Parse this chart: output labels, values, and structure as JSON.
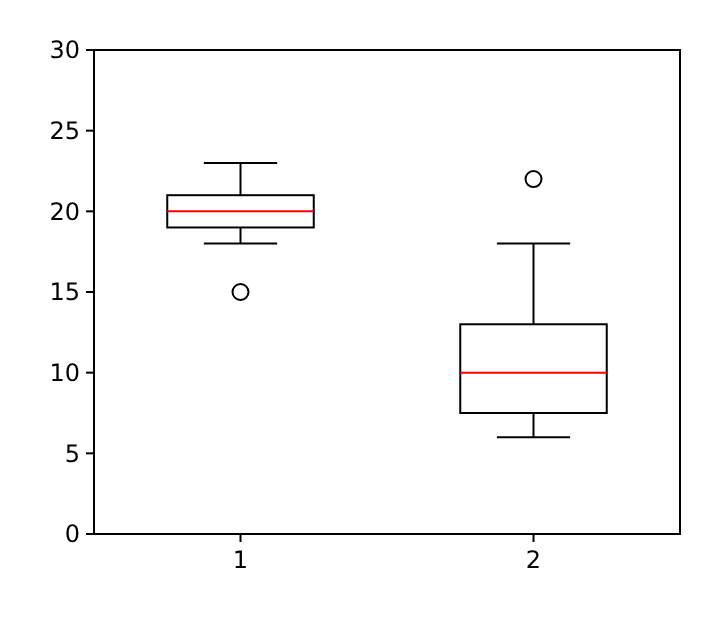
{
  "chart_data": {
    "type": "box",
    "categories": [
      "1",
      "2"
    ],
    "boxes": [
      {
        "low": 18,
        "q1": 19,
        "median": 20,
        "q3": 21,
        "high": 23,
        "outliers": [
          15
        ]
      },
      {
        "low": 6,
        "q1": 7.5,
        "median": 10,
        "q3": 13,
        "high": 18,
        "outliers": [
          22
        ]
      }
    ],
    "ylim": [
      0,
      30
    ],
    "yticks": [
      0,
      5,
      10,
      15,
      20,
      25,
      30
    ],
    "grid": false
  }
}
